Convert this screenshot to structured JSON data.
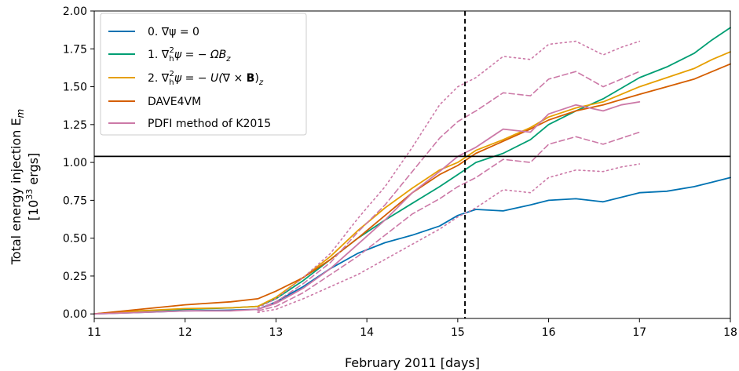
{
  "chart_data": {
    "type": "line",
    "xlabel": "February 2011 [days]",
    "ylabel_line1": "Total energy injection E",
    "ylabel_sub": "m",
    "ylabel_line2_pre": "[10",
    "ylabel_line2_sup": "33",
    "ylabel_line2_post": " ergs]",
    "xlim": [
      11,
      18
    ],
    "ylim": [
      -0.03,
      2.0
    ],
    "xticks": [
      "11",
      "12",
      "13",
      "14",
      "15",
      "16",
      "17",
      "18"
    ],
    "yticks": [
      "0.00",
      "0.25",
      "0.50",
      "0.75",
      "1.00",
      "1.25",
      "1.50",
      "1.75",
      "2.00"
    ],
    "grid": false,
    "legend_placement": "top-left",
    "reference_lines": {
      "vertical_x": 15.08,
      "horizontal_y": 1.04
    },
    "legend": [
      {
        "label_pre": "0. ∇ψ = 0",
        "color": "#0072b2"
      },
      {
        "label_pre": "1. ∇",
        "color": "#009e73"
      },
      {
        "label_pre": "2. ∇",
        "color": "#e69f00"
      },
      {
        "label_pre": "DAVE4VM",
        "color": "#d55e00"
      },
      {
        "label_pre": "PDFI method of K2015",
        "color": "#cc79a7"
      }
    ],
    "legend_math": {
      "item1": {
        "sub": "h",
        "sup": "2",
        "rest": "ψ = − ΩB",
        "end_sub": "z"
      },
      "item2": {
        "sub": "h",
        "sup": "2",
        "rest_a": "ψ = − U(∇ × ",
        "bold": "B",
        "rest_b": ")",
        "end_sub": "z"
      }
    },
    "series": [
      {
        "name": "0. ∇ψ = 0",
        "color": "#0072b2",
        "style": "solid",
        "x": [
          11,
          11.5,
          12,
          12.5,
          12.8,
          13,
          13.3,
          13.6,
          13.9,
          14.2,
          14.5,
          14.8,
          15,
          15.2,
          15.5,
          15.8,
          16,
          16.3,
          16.6,
          17,
          17.3,
          17.6,
          17.8,
          18
        ],
        "y": [
          0,
          0.01,
          0.02,
          0.025,
          0.03,
          0.08,
          0.18,
          0.3,
          0.4,
          0.47,
          0.52,
          0.58,
          0.65,
          0.69,
          0.68,
          0.72,
          0.75,
          0.76,
          0.74,
          0.8,
          0.81,
          0.84,
          0.87,
          0.9
        ]
      },
      {
        "name": "1. ∇h²ψ = −ΩBz",
        "color": "#009e73",
        "style": "solid",
        "x": [
          11,
          11.5,
          12,
          12.5,
          12.8,
          13,
          13.3,
          13.6,
          13.9,
          14.2,
          14.5,
          14.8,
          15,
          15.2,
          15.5,
          15.8,
          16,
          16.3,
          16.6,
          17,
          17.3,
          17.6,
          17.8,
          18
        ],
        "y": [
          0,
          0.02,
          0.03,
          0.04,
          0.05,
          0.1,
          0.22,
          0.36,
          0.5,
          0.62,
          0.73,
          0.84,
          0.92,
          1.0,
          1.06,
          1.15,
          1.25,
          1.34,
          1.42,
          1.56,
          1.63,
          1.72,
          1.81,
          1.89
        ]
      },
      {
        "name": "2. ∇h²ψ = −U(∇×B)z",
        "color": "#e69f00",
        "style": "solid",
        "x": [
          11,
          11.5,
          12,
          12.5,
          12.8,
          13,
          13.3,
          13.6,
          13.9,
          14.2,
          14.5,
          14.8,
          15,
          15.2,
          15.5,
          15.8,
          16,
          16.3,
          16.6,
          17,
          17.3,
          17.6,
          17.8,
          18
        ],
        "y": [
          0,
          0.02,
          0.035,
          0.04,
          0.05,
          0.11,
          0.24,
          0.38,
          0.55,
          0.7,
          0.83,
          0.95,
          1.0,
          1.08,
          1.15,
          1.23,
          1.3,
          1.36,
          1.4,
          1.5,
          1.56,
          1.62,
          1.68,
          1.73
        ]
      },
      {
        "name": "DAVE4VM",
        "color": "#d55e00",
        "style": "solid",
        "x": [
          11,
          11.5,
          12,
          12.5,
          12.8,
          13,
          13.3,
          13.6,
          13.9,
          14.2,
          14.5,
          14.8,
          15,
          15.2,
          15.5,
          15.8,
          16,
          16.3,
          16.6,
          17,
          17.3,
          17.6,
          17.8,
          18
        ],
        "y": [
          0,
          0.03,
          0.06,
          0.08,
          0.1,
          0.15,
          0.24,
          0.36,
          0.5,
          0.65,
          0.8,
          0.92,
          0.98,
          1.06,
          1.14,
          1.22,
          1.28,
          1.34,
          1.38,
          1.45,
          1.5,
          1.55,
          1.6,
          1.65
        ]
      },
      {
        "name": "PDFI method of K2015",
        "color": "#cc79a7",
        "style": "solid",
        "x": [
          11,
          11.5,
          12,
          12.5,
          12.8,
          13,
          13.3,
          13.6,
          13.9,
          14.2,
          14.5,
          14.8,
          15,
          15.2,
          15.5,
          15.8,
          16,
          16.3,
          16.6,
          16.8,
          17
        ],
        "y": [
          0,
          0.01,
          0.02,
          0.02,
          0.03,
          0.07,
          0.17,
          0.3,
          0.46,
          0.62,
          0.8,
          0.94,
          1.04,
          1.1,
          1.22,
          1.2,
          1.32,
          1.38,
          1.34,
          1.38,
          1.4
        ]
      },
      {
        "name": "PDFI upper dashed",
        "color": "#cc79a7",
        "style": "dashed",
        "x": [
          12.8,
          13,
          13.3,
          13.6,
          13.9,
          14.2,
          14.5,
          14.8,
          15,
          15.2,
          15.5,
          15.8,
          16,
          16.3,
          16.6,
          16.8,
          17
        ],
        "y": [
          0.03,
          0.08,
          0.2,
          0.34,
          0.54,
          0.72,
          0.94,
          1.16,
          1.27,
          1.34,
          1.46,
          1.44,
          1.55,
          1.6,
          1.5,
          1.55,
          1.6
        ]
      },
      {
        "name": "PDFI lower dashed",
        "color": "#cc79a7",
        "style": "dashed",
        "x": [
          12.8,
          13,
          13.3,
          13.6,
          13.9,
          14.2,
          14.5,
          14.8,
          15,
          15.2,
          15.5,
          15.8,
          16,
          16.3,
          16.6,
          16.8,
          17
        ],
        "y": [
          0.02,
          0.05,
          0.14,
          0.26,
          0.38,
          0.52,
          0.66,
          0.76,
          0.84,
          0.9,
          1.02,
          1.0,
          1.12,
          1.17,
          1.12,
          1.16,
          1.2
        ]
      },
      {
        "name": "PDFI upper dotted",
        "color": "#cc79a7",
        "style": "dotted",
        "x": [
          12.8,
          13,
          13.3,
          13.6,
          13.9,
          14.2,
          14.5,
          14.8,
          15,
          15.2,
          15.5,
          15.8,
          16,
          16.3,
          16.6,
          16.8,
          17
        ],
        "y": [
          0.04,
          0.1,
          0.24,
          0.4,
          0.63,
          0.84,
          1.1,
          1.38,
          1.5,
          1.56,
          1.7,
          1.68,
          1.78,
          1.8,
          1.71,
          1.76,
          1.8
        ]
      },
      {
        "name": "PDFI lower dotted",
        "color": "#cc79a7",
        "style": "dotted",
        "x": [
          12.8,
          13,
          13.3,
          13.6,
          13.9,
          14.2,
          14.5,
          14.8,
          15,
          15.2,
          15.5,
          15.8,
          16,
          16.3,
          16.6,
          16.8,
          17
        ],
        "y": [
          0.01,
          0.03,
          0.1,
          0.18,
          0.26,
          0.36,
          0.46,
          0.56,
          0.64,
          0.7,
          0.82,
          0.8,
          0.9,
          0.95,
          0.94,
          0.97,
          0.99
        ]
      }
    ]
  }
}
